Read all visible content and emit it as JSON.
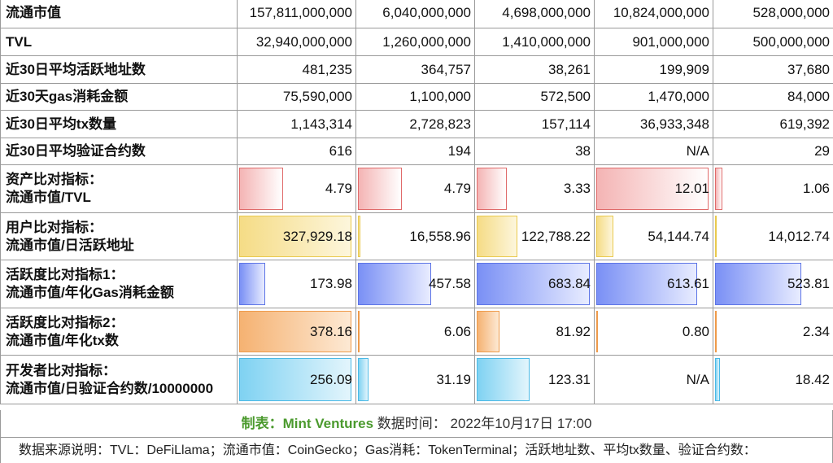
{
  "chart_data": {
    "type": "table",
    "rows": [
      {
        "label": "流通市值",
        "values": [
          "157,811,000,000",
          "6,040,000,000",
          "4,698,000,000",
          "10,824,000,000",
          "528,000,000"
        ]
      },
      {
        "label": "TVL",
        "values": [
          "32,940,000,000",
          "1,260,000,000",
          "1,410,000,000",
          "901,000,000",
          "500,000,000"
        ]
      },
      {
        "label": "近30日平均活跃地址数",
        "values": [
          "481,235",
          "364,757",
          "38,261",
          "199,909",
          "37,680"
        ]
      },
      {
        "label": "近30天gas消耗金额",
        "values": [
          "75,590,000",
          "1,100,000",
          "572,500",
          "1,470,000",
          "84,000"
        ]
      },
      {
        "label": "近30日平均tx数量",
        "values": [
          "1,143,314",
          "2,728,823",
          "157,114",
          "36,933,348",
          "619,392"
        ]
      },
      {
        "label": "近30日平均验证合约数",
        "values": [
          "616",
          "194",
          "38",
          "N/A",
          "29"
        ]
      },
      {
        "label_line1": "资产比对指标：",
        "label_line2": "流通市值/TVL",
        "bar": true,
        "color_from": "#f4b4b4",
        "color_to": "#ffffff",
        "border": "#e06a6a",
        "values": [
          "4.79",
          "4.79",
          "3.33",
          "12.01",
          "1.06"
        ],
        "fractions": [
          0.4,
          0.4,
          0.28,
          0.98,
          0.09
        ]
      },
      {
        "label_line1": "用户比对指标：",
        "label_line2": "流通市值/日活跃地址",
        "bar": true,
        "color_from": "#f5dc86",
        "color_to": "#fdf6dc",
        "border": "#e9c94d",
        "values": [
          "327,929.18",
          "16,558.96",
          "122,788.22",
          "54,144.74",
          "14,012.74"
        ],
        "fractions": [
          0.98,
          0.05,
          0.37,
          0.17,
          0.04
        ]
      },
      {
        "label_line1": "活跃度比对指标1：",
        "label_line2": "流通市值/年化Gas消耗金额",
        "bar": true,
        "color_from": "#7a90f5",
        "color_to": "#e8ecff",
        "border": "#5c74e6",
        "values": [
          "173.98",
          "457.58",
          "683.84",
          "613.61",
          "523.81"
        ],
        "fractions": [
          0.25,
          0.65,
          0.98,
          0.88,
          0.75
        ]
      },
      {
        "label_line1": "活跃度比对指标2：",
        "label_line2": "流通市值/年化tx数",
        "bar": true,
        "color_from": "#f5b272",
        "color_to": "#fde9d4",
        "border": "#ee9a4a",
        "values": [
          "378.16",
          "6.06",
          "81.92",
          "0.80",
          "2.34"
        ],
        "fractions": [
          0.98,
          0.03,
          0.22,
          0.02,
          0.01
        ]
      },
      {
        "label_line1": "开发者比对指标：",
        "label_line2": "流通市值/日验证合约数/10000000",
        "bar": true,
        "color_from": "#7fd2f2",
        "color_to": "#e3f5fc",
        "border": "#4ab9e6",
        "values": [
          "256.09",
          "31.19",
          "123.31",
          "N/A",
          "18.42"
        ],
        "fractions": [
          0.98,
          0.12,
          0.47,
          0.0,
          0.07
        ]
      }
    ]
  },
  "footer": {
    "brand_label": "制表：",
    "brand_name": "Mint Ventures",
    "time_label": " 数据时间： 2022年10月17日 17:00",
    "source": "数据来源说明：TVL：DeFiLlama；流通市值：CoinGecko；Gas消耗：TokenTerminal；活跃地址数、平均tx数量、验证合约数："
  }
}
